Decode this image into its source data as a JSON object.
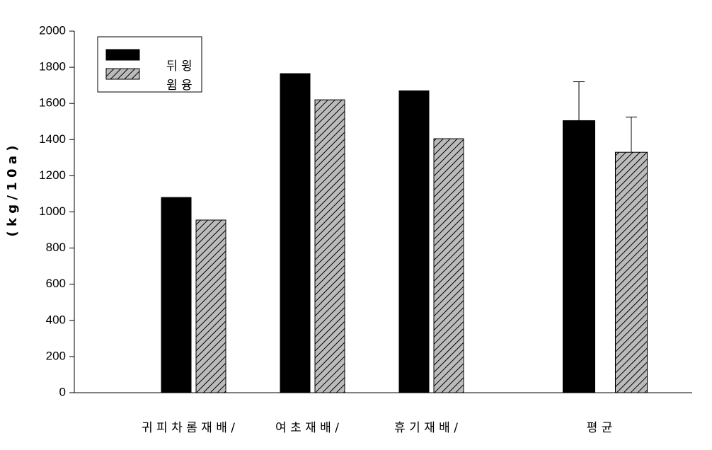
{
  "chart_data": {
    "type": "bar",
    "y_label": "( k g / 1 0 a )",
    "categories": [
      "귀 피 차 롬 재 배 /",
      "여 초 재 배 /",
      "휴 기 재 배 /",
      "평 균"
    ],
    "series": [
      {
        "name": "뒤 윙",
        "color": "#000000",
        "values": [
          1080,
          1765,
          1670,
          1505
        ],
        "errors": [
          null,
          null,
          null,
          215
        ]
      },
      {
        "name": "윔 융",
        "color": "#bbbbbb",
        "pattern": "hatch",
        "values": [
          955,
          1620,
          1405,
          1330
        ],
        "errors": [
          null,
          null,
          null,
          195
        ]
      }
    ],
    "ylim": [
      0,
      2000
    ],
    "yticks": [
      0,
      200,
      400,
      600,
      800,
      1000,
      1200,
      1400,
      1600,
      1800,
      2000
    ],
    "legend": "top-left"
  }
}
